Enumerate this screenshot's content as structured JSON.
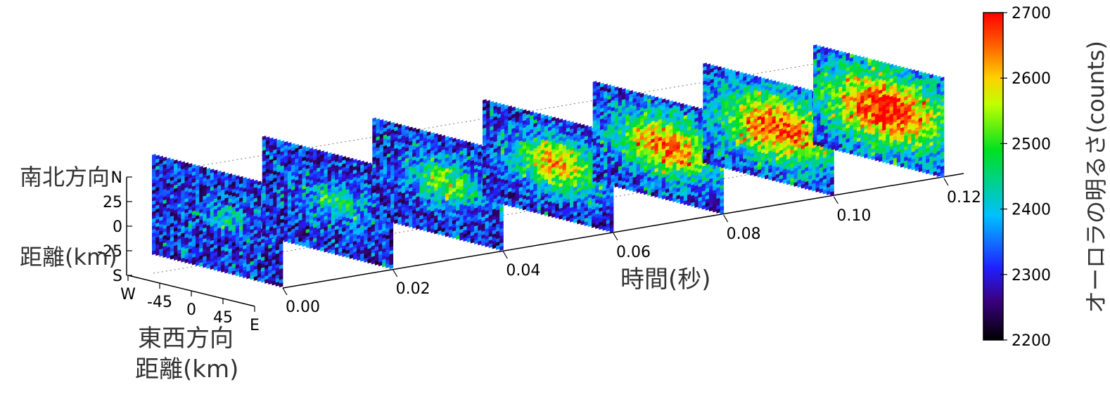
{
  "chart_data": {
    "type": "heatmap",
    "title": "",
    "time_axis": {
      "label": "時間(秒)",
      "ticks": [
        "0.00",
        "0.02",
        "0.04",
        "0.06",
        "0.08",
        "0.10",
        "0.12"
      ],
      "range": [
        0.0,
        0.12
      ]
    },
    "ew_axis": {
      "label_line1": "東西方向",
      "label_line2": "距離(km)",
      "ticks": [
        "W",
        "-45",
        "0",
        "45",
        "E"
      ]
    },
    "ns_axis": {
      "label_line1": "南北方向",
      "label_line2": "距離(km)",
      "ticks": [
        "N",
        "25",
        "0",
        "-25",
        "S"
      ]
    },
    "colorbar": {
      "label": "オーロラの明るさ(counts)",
      "ticks": [
        "2700",
        "2600",
        "2500",
        "2400",
        "2300",
        "2200"
      ],
      "range": [
        2200,
        2700
      ]
    },
    "frames": [
      {
        "time": 0.0,
        "peak_counts": 2380
      },
      {
        "time": 0.02,
        "peak_counts": 2420
      },
      {
        "time": 0.04,
        "peak_counts": 2480
      },
      {
        "time": 0.06,
        "peak_counts": 2560
      },
      {
        "time": 0.08,
        "peak_counts": 2600
      },
      {
        "time": 0.1,
        "peak_counts": 2620
      },
      {
        "time": 0.12,
        "peak_counts": 2640
      }
    ]
  }
}
